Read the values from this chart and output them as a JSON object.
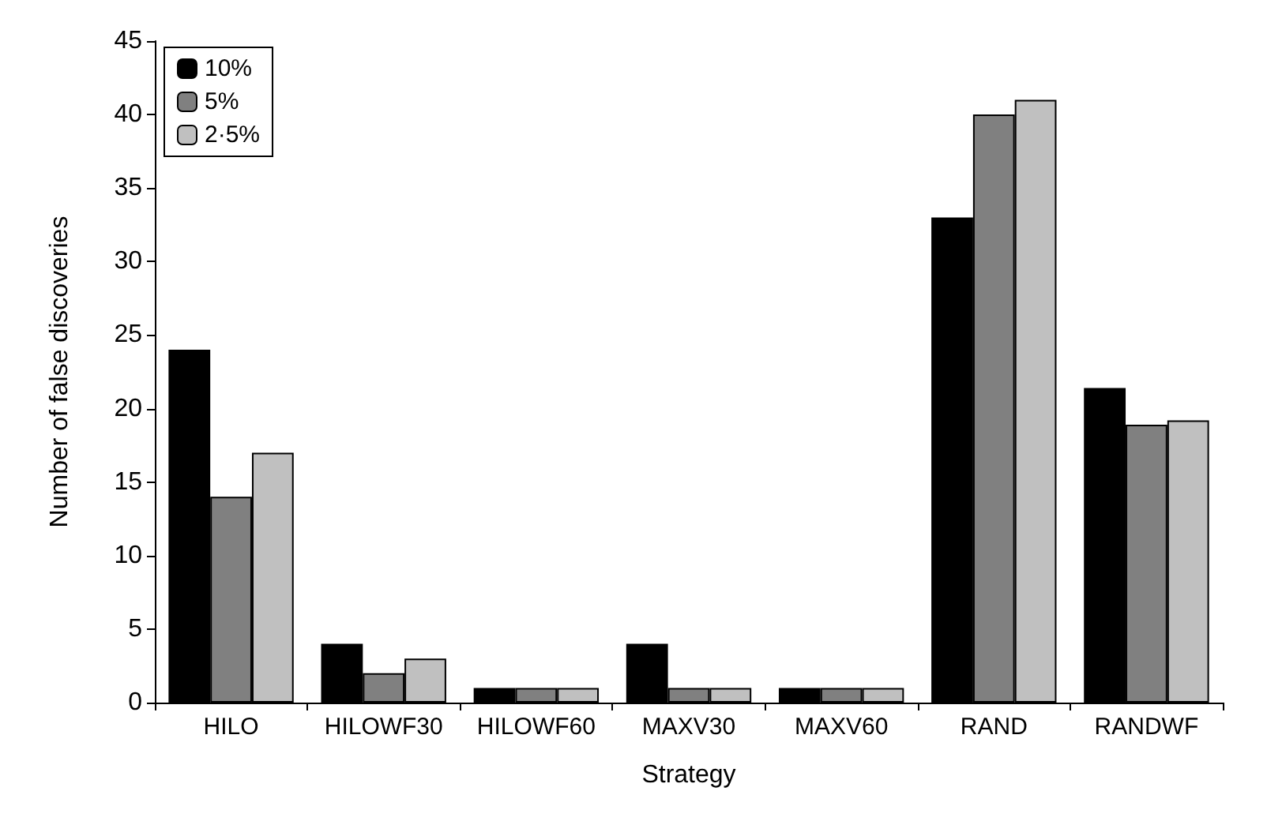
{
  "chart_data": {
    "type": "bar",
    "xlabel": "Strategy",
    "ylabel": "Number of false discoveries",
    "categories": [
      "HILO",
      "HILOWF30",
      "HILOWF60",
      "MAXV30",
      "MAXV60",
      "RAND",
      "RANDWF"
    ],
    "series": [
      {
        "name": "10%",
        "color": "#000000",
        "values": [
          24,
          4,
          1,
          4,
          1,
          33,
          21.4
        ]
      },
      {
        "name": "5%",
        "color": "#808080",
        "values": [
          14,
          2,
          1,
          1,
          1,
          40,
          18.9
        ]
      },
      {
        "name": "2·5%",
        "color": "#c0c0c0",
        "values": [
          17,
          3,
          1,
          1,
          1,
          41,
          19.2
        ]
      }
    ],
    "ylim": [
      0,
      45
    ],
    "yticks": [
      0,
      5,
      10,
      15,
      20,
      25,
      30,
      35,
      40,
      45
    ],
    "grid": false,
    "legend": "top left"
  }
}
